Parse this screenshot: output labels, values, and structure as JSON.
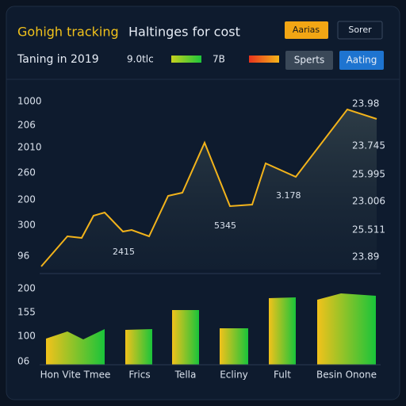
{
  "header": {
    "title": "Gohigh tracking",
    "subtitle": "Haltinges for cost",
    "buttons": [
      "Aarias",
      "Sorer"
    ]
  },
  "toolbar": {
    "label": "Taning in 2019",
    "legend": [
      "9.0tlc",
      "7B"
    ],
    "buttons": [
      "Sperts",
      "Aating"
    ]
  },
  "line_panel": {
    "left_labels": [
      "1000",
      "206",
      "2010",
      "260",
      "200",
      "300",
      "96"
    ],
    "right_labels": [
      "23.98",
      "23.745",
      "25.995",
      "23.006",
      "25.511",
      "23.89"
    ],
    "point_labels": [
      "2415",
      "5345",
      "3.178"
    ]
  },
  "bar_panel": {
    "left_labels": [
      "200",
      "155",
      "100",
      "06"
    ],
    "categories": [
      "Hon Vite Tmee",
      "Frics",
      "Tella",
      "Ecliny",
      "Fult",
      "Besin Onone"
    ]
  }
}
